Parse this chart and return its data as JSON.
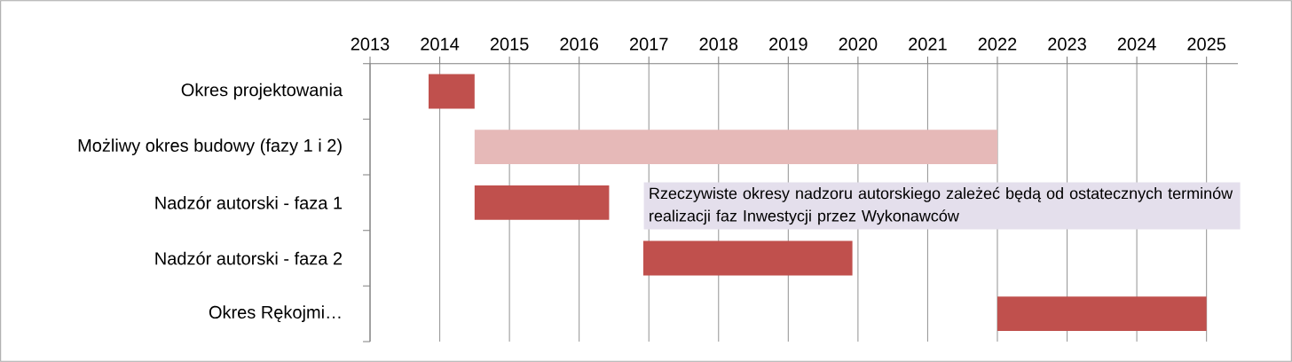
{
  "chart_data": {
    "type": "bar",
    "orientation": "horizontal",
    "categories": [
      "Okres projektowania",
      "Możliwy okres budowy (fazy 1 i 2)",
      "Nadzór autorski - faza 1",
      "Nadzór autorski - faza 2",
      "Okres Rękojmi…"
    ],
    "base": [
      2013.84,
      2014.5,
      2014.5,
      2016.92,
      2022
    ],
    "values": [
      0.66,
      7.5,
      1.93,
      3.0,
      3.0
    ],
    "colors": [
      "#c0504d",
      "#e6b9b8",
      "#c0504d",
      "#c0504d",
      "#c0504d"
    ],
    "xlim": [
      2013,
      2025.45
    ],
    "xticks": [
      2013,
      2014,
      2015,
      2016,
      2017,
      2018,
      2019,
      2020,
      2021,
      2022,
      2023,
      2024,
      2025
    ],
    "grid": "x",
    "annotations": [
      "Rzeczywiste okresy nadzoru autorskiego zależeć będą od ostatecznych terminów realizacji faz Inwestycji przez Wykonawców"
    ]
  }
}
